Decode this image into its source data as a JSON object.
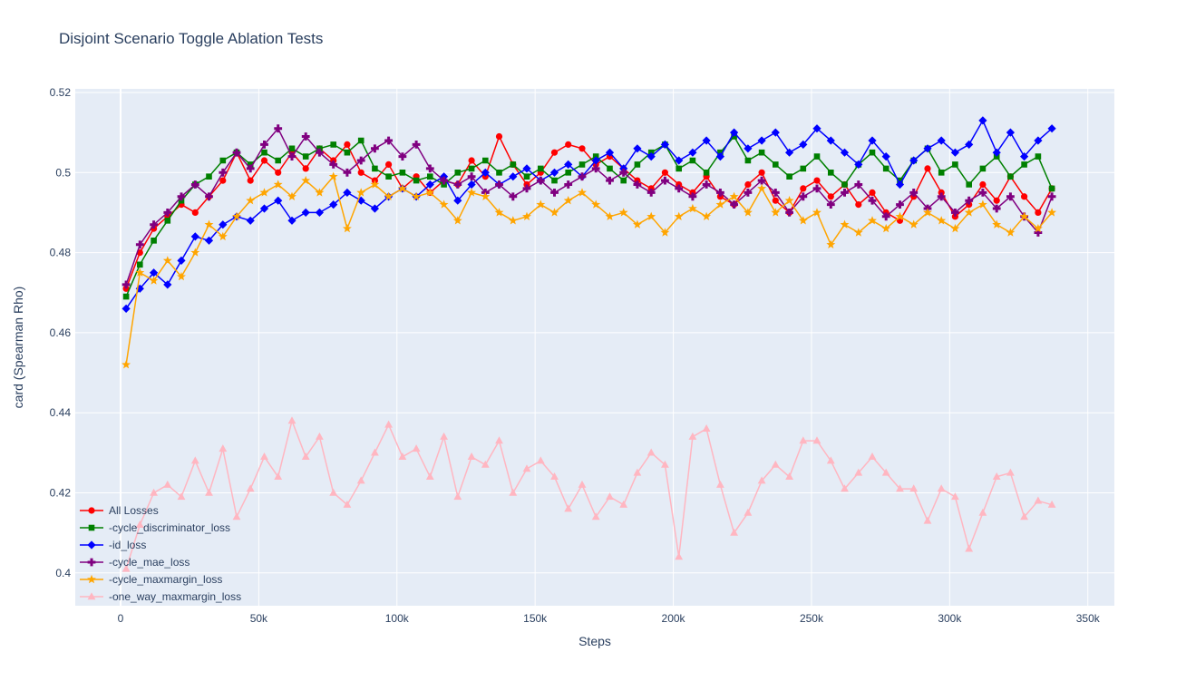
{
  "chart_data": {
    "type": "line",
    "title": "Disjoint Scenario Toggle Ablation Tests",
    "xlabel": "Steps",
    "ylabel": "card (Spearman Rho)",
    "plot_bg": "#e5ecf6",
    "grid_color": "#ffffff",
    "text_color": "#2a3f5f",
    "grid": true,
    "legend_position": "bottom-left-inside",
    "x_range": [
      -16400,
      359600
    ],
    "y_range": [
      0.3918,
      0.5209
    ],
    "x_ticks": [
      0,
      50000,
      100000,
      150000,
      200000,
      250000,
      300000,
      350000
    ],
    "x_tick_labels": [
      "0",
      "50k",
      "100k",
      "150k",
      "200k",
      "250k",
      "300k",
      "350k"
    ],
    "y_ticks": [
      0.4,
      0.42,
      0.44,
      0.46,
      0.48,
      0.5,
      0.52
    ],
    "y_tick_labels": [
      "0.4",
      "0.42",
      "0.44",
      "0.46",
      "0.48",
      "0.5",
      "0.52"
    ],
    "x": [
      2000,
      7000,
      12000,
      17000,
      22000,
      27000,
      32000,
      37000,
      42000,
      47000,
      52000,
      57000,
      62000,
      67000,
      72000,
      77000,
      82000,
      87000,
      92000,
      97000,
      102000,
      107000,
      112000,
      117000,
      122000,
      127000,
      132000,
      137000,
      142000,
      147000,
      152000,
      157000,
      162000,
      167000,
      172000,
      177000,
      182000,
      187000,
      192000,
      197000,
      202000,
      207000,
      212000,
      217000,
      222000,
      227000,
      232000,
      237000,
      242000,
      247000,
      252000,
      257000,
      262000,
      267000,
      272000,
      277000,
      282000,
      287000,
      292000,
      297000,
      302000,
      307000,
      312000,
      317000,
      322000,
      327000,
      332000,
      337000
    ],
    "series": [
      {
        "name": "All Losses",
        "color": "#ff0000",
        "marker": "circle",
        "values": [
          0.471,
          0.48,
          0.486,
          0.489,
          0.492,
          0.49,
          0.494,
          0.498,
          0.505,
          0.498,
          0.503,
          0.5,
          0.505,
          0.501,
          0.506,
          0.503,
          0.507,
          0.5,
          0.498,
          0.502,
          0.496,
          0.499,
          0.495,
          0.498,
          0.497,
          0.503,
          0.499,
          0.509,
          0.502,
          0.497,
          0.5,
          0.505,
          0.507,
          0.506,
          0.502,
          0.504,
          0.501,
          0.498,
          0.496,
          0.5,
          0.497,
          0.495,
          0.499,
          0.494,
          0.492,
          0.497,
          0.5,
          0.493,
          0.49,
          0.496,
          0.498,
          0.494,
          0.497,
          0.492,
          0.495,
          0.49,
          0.488,
          0.494,
          0.501,
          0.495,
          0.489,
          0.492,
          0.497,
          0.493,
          0.499,
          0.494,
          0.49,
          0.496
        ]
      },
      {
        "name": "-cycle_discriminator_loss",
        "color": "#008000",
        "marker": "square",
        "values": [
          0.469,
          0.477,
          0.483,
          0.488,
          0.493,
          0.497,
          0.499,
          0.503,
          0.505,
          0.502,
          0.505,
          0.503,
          0.506,
          0.504,
          0.506,
          0.507,
          0.505,
          0.508,
          0.501,
          0.499,
          0.5,
          0.498,
          0.499,
          0.497,
          0.5,
          0.501,
          0.503,
          0.5,
          0.502,
          0.499,
          0.501,
          0.498,
          0.5,
          0.502,
          0.504,
          0.501,
          0.498,
          0.502,
          0.505,
          0.507,
          0.501,
          0.503,
          0.5,
          0.505,
          0.509,
          0.503,
          0.505,
          0.502,
          0.499,
          0.501,
          0.504,
          0.5,
          0.497,
          0.502,
          0.505,
          0.501,
          0.498,
          0.503,
          0.506,
          0.5,
          0.502,
          0.497,
          0.501,
          0.504,
          0.499,
          0.502,
          0.504,
          0.496
        ]
      },
      {
        "name": "-id_loss",
        "color": "#0000ff",
        "marker": "diamond",
        "values": [
          0.466,
          0.471,
          0.475,
          0.472,
          0.478,
          0.484,
          0.483,
          0.487,
          0.489,
          0.488,
          0.491,
          0.493,
          0.488,
          0.49,
          0.49,
          0.492,
          0.495,
          0.493,
          0.491,
          0.494,
          0.496,
          0.494,
          0.497,
          0.499,
          0.493,
          0.497,
          0.5,
          0.497,
          0.499,
          0.501,
          0.498,
          0.5,
          0.502,
          0.499,
          0.503,
          0.505,
          0.501,
          0.506,
          0.504,
          0.507,
          0.503,
          0.505,
          0.508,
          0.504,
          0.51,
          0.506,
          0.508,
          0.51,
          0.505,
          0.507,
          0.511,
          0.508,
          0.505,
          0.502,
          0.508,
          0.504,
          0.497,
          0.503,
          0.506,
          0.508,
          0.505,
          0.507,
          0.513,
          0.505,
          0.51,
          0.504,
          0.508,
          0.511
        ]
      },
      {
        "name": "-cycle_mae_loss",
        "color": "#800080",
        "marker": "cross",
        "values": [
          0.472,
          0.482,
          0.487,
          0.49,
          0.494,
          0.497,
          0.494,
          0.5,
          0.505,
          0.501,
          0.507,
          0.511,
          0.504,
          0.509,
          0.505,
          0.502,
          0.5,
          0.503,
          0.506,
          0.508,
          0.504,
          0.507,
          0.501,
          0.498,
          0.497,
          0.499,
          0.495,
          0.497,
          0.494,
          0.496,
          0.498,
          0.495,
          0.497,
          0.499,
          0.501,
          0.498,
          0.5,
          0.497,
          0.495,
          0.498,
          0.496,
          0.494,
          0.497,
          0.495,
          0.492,
          0.495,
          0.498,
          0.495,
          0.49,
          0.494,
          0.496,
          0.492,
          0.495,
          0.497,
          0.493,
          0.489,
          0.492,
          0.495,
          0.491,
          0.494,
          0.49,
          0.493,
          0.495,
          0.491,
          0.494,
          0.489,
          0.485,
          0.494
        ]
      },
      {
        "name": "-cycle_maxmargin_loss",
        "color": "#ffa500",
        "marker": "star",
        "values": [
          0.452,
          0.475,
          0.473,
          0.478,
          0.474,
          0.48,
          0.487,
          0.484,
          0.489,
          0.493,
          0.495,
          0.497,
          0.494,
          0.498,
          0.495,
          0.499,
          0.486,
          0.495,
          0.497,
          0.494,
          0.496,
          0.494,
          0.495,
          0.492,
          0.488,
          0.495,
          0.494,
          0.49,
          0.488,
          0.489,
          0.492,
          0.49,
          0.493,
          0.495,
          0.492,
          0.489,
          0.49,
          0.487,
          0.489,
          0.485,
          0.489,
          0.491,
          0.489,
          0.492,
          0.494,
          0.49,
          0.496,
          0.49,
          0.493,
          0.488,
          0.49,
          0.482,
          0.487,
          0.485,
          0.488,
          0.486,
          0.489,
          0.487,
          0.49,
          0.488,
          0.486,
          0.49,
          0.492,
          0.487,
          0.485,
          0.489,
          0.486,
          0.49
        ]
      },
      {
        "name": "-one_way_maxmargin_loss",
        "color": "#ffb6c1",
        "marker": "triangle-up",
        "values": [
          0.401,
          0.412,
          0.42,
          0.422,
          0.419,
          0.428,
          0.42,
          0.431,
          0.414,
          0.421,
          0.429,
          0.424,
          0.438,
          0.429,
          0.434,
          0.42,
          0.417,
          0.423,
          0.43,
          0.437,
          0.429,
          0.431,
          0.424,
          0.434,
          0.419,
          0.429,
          0.427,
          0.433,
          0.42,
          0.426,
          0.428,
          0.424,
          0.416,
          0.422,
          0.414,
          0.419,
          0.417,
          0.425,
          0.43,
          0.427,
          0.404,
          0.434,
          0.436,
          0.422,
          0.41,
          0.415,
          0.423,
          0.427,
          0.424,
          0.433,
          0.433,
          0.428,
          0.421,
          0.425,
          0.429,
          0.425,
          0.421,
          0.421,
          0.413,
          0.421,
          0.419,
          0.406,
          0.415,
          0.424,
          0.425,
          0.414,
          0.418,
          0.417
        ]
      }
    ]
  }
}
